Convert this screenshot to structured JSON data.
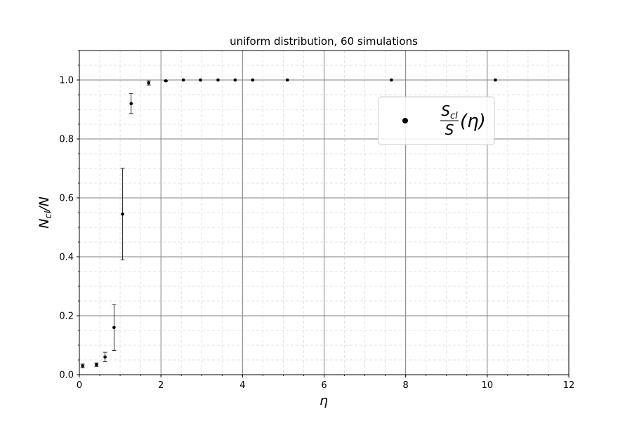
{
  "chart_data": {
    "type": "scatter",
    "title": "uniform distribution, 60 simulations",
    "xlabel": "η",
    "ylabel": {
      "main": "N",
      "sub": "cl",
      "tail": "/N"
    },
    "xlim": [
      0,
      12
    ],
    "ylim": [
      0,
      1.1
    ],
    "x_ticks": [
      0,
      2,
      4,
      6,
      8,
      10,
      12
    ],
    "y_ticks": [
      0.0,
      0.2,
      0.4,
      0.6,
      0.8,
      1.0
    ],
    "x_tick_labels": [
      "0",
      "2",
      "4",
      "6",
      "8",
      "10",
      "12"
    ],
    "y_tick_labels": [
      "0.0",
      "0.2",
      "0.4",
      "0.6",
      "0.8",
      "1.0"
    ],
    "grid": {
      "major": true,
      "minor": true
    },
    "legend": {
      "placement": "upper-right",
      "entries": [
        {
          "numerator": "S",
          "numerator_sub": "cl",
          "denominator": "S",
          "suffix": "(η)"
        }
      ]
    },
    "series": [
      {
        "marker": "dot",
        "color": "#000000",
        "points": [
          {
            "x": 0.08,
            "y": 0.03,
            "err": 0.006
          },
          {
            "x": 0.42,
            "y": 0.034,
            "err": 0.006
          },
          {
            "x": 0.63,
            "y": 0.06,
            "err": 0.016
          },
          {
            "x": 0.85,
            "y": 0.16,
            "err": 0.078
          },
          {
            "x": 1.06,
            "y": 0.545,
            "err": 0.155
          },
          {
            "x": 1.27,
            "y": 0.92,
            "err": 0.034
          },
          {
            "x": 1.7,
            "y": 0.99,
            "err": 0.007
          },
          {
            "x": 2.12,
            "y": 0.997,
            "err": 0.002
          },
          {
            "x": 2.55,
            "y": 1.0,
            "err": 0
          },
          {
            "x": 2.97,
            "y": 1.0,
            "err": 0
          },
          {
            "x": 3.4,
            "y": 1.0,
            "err": 0
          },
          {
            "x": 3.82,
            "y": 1.0,
            "err": 0
          },
          {
            "x": 4.25,
            "y": 1.0,
            "err": 0
          },
          {
            "x": 5.1,
            "y": 1.0,
            "err": 0
          },
          {
            "x": 7.65,
            "y": 1.0,
            "err": 0
          },
          {
            "x": 10.2,
            "y": 1.0,
            "err": 0
          }
        ]
      }
    ]
  }
}
